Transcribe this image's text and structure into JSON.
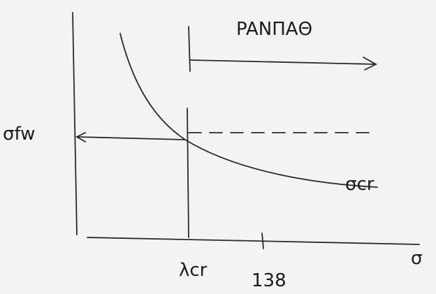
{
  "labels": {
    "title": "PANΠAΘ",
    "y_level": "σfw",
    "curve": "σcr",
    "x_point": "λcr",
    "x_tick": "138",
    "x_axis": "σ"
  }
}
